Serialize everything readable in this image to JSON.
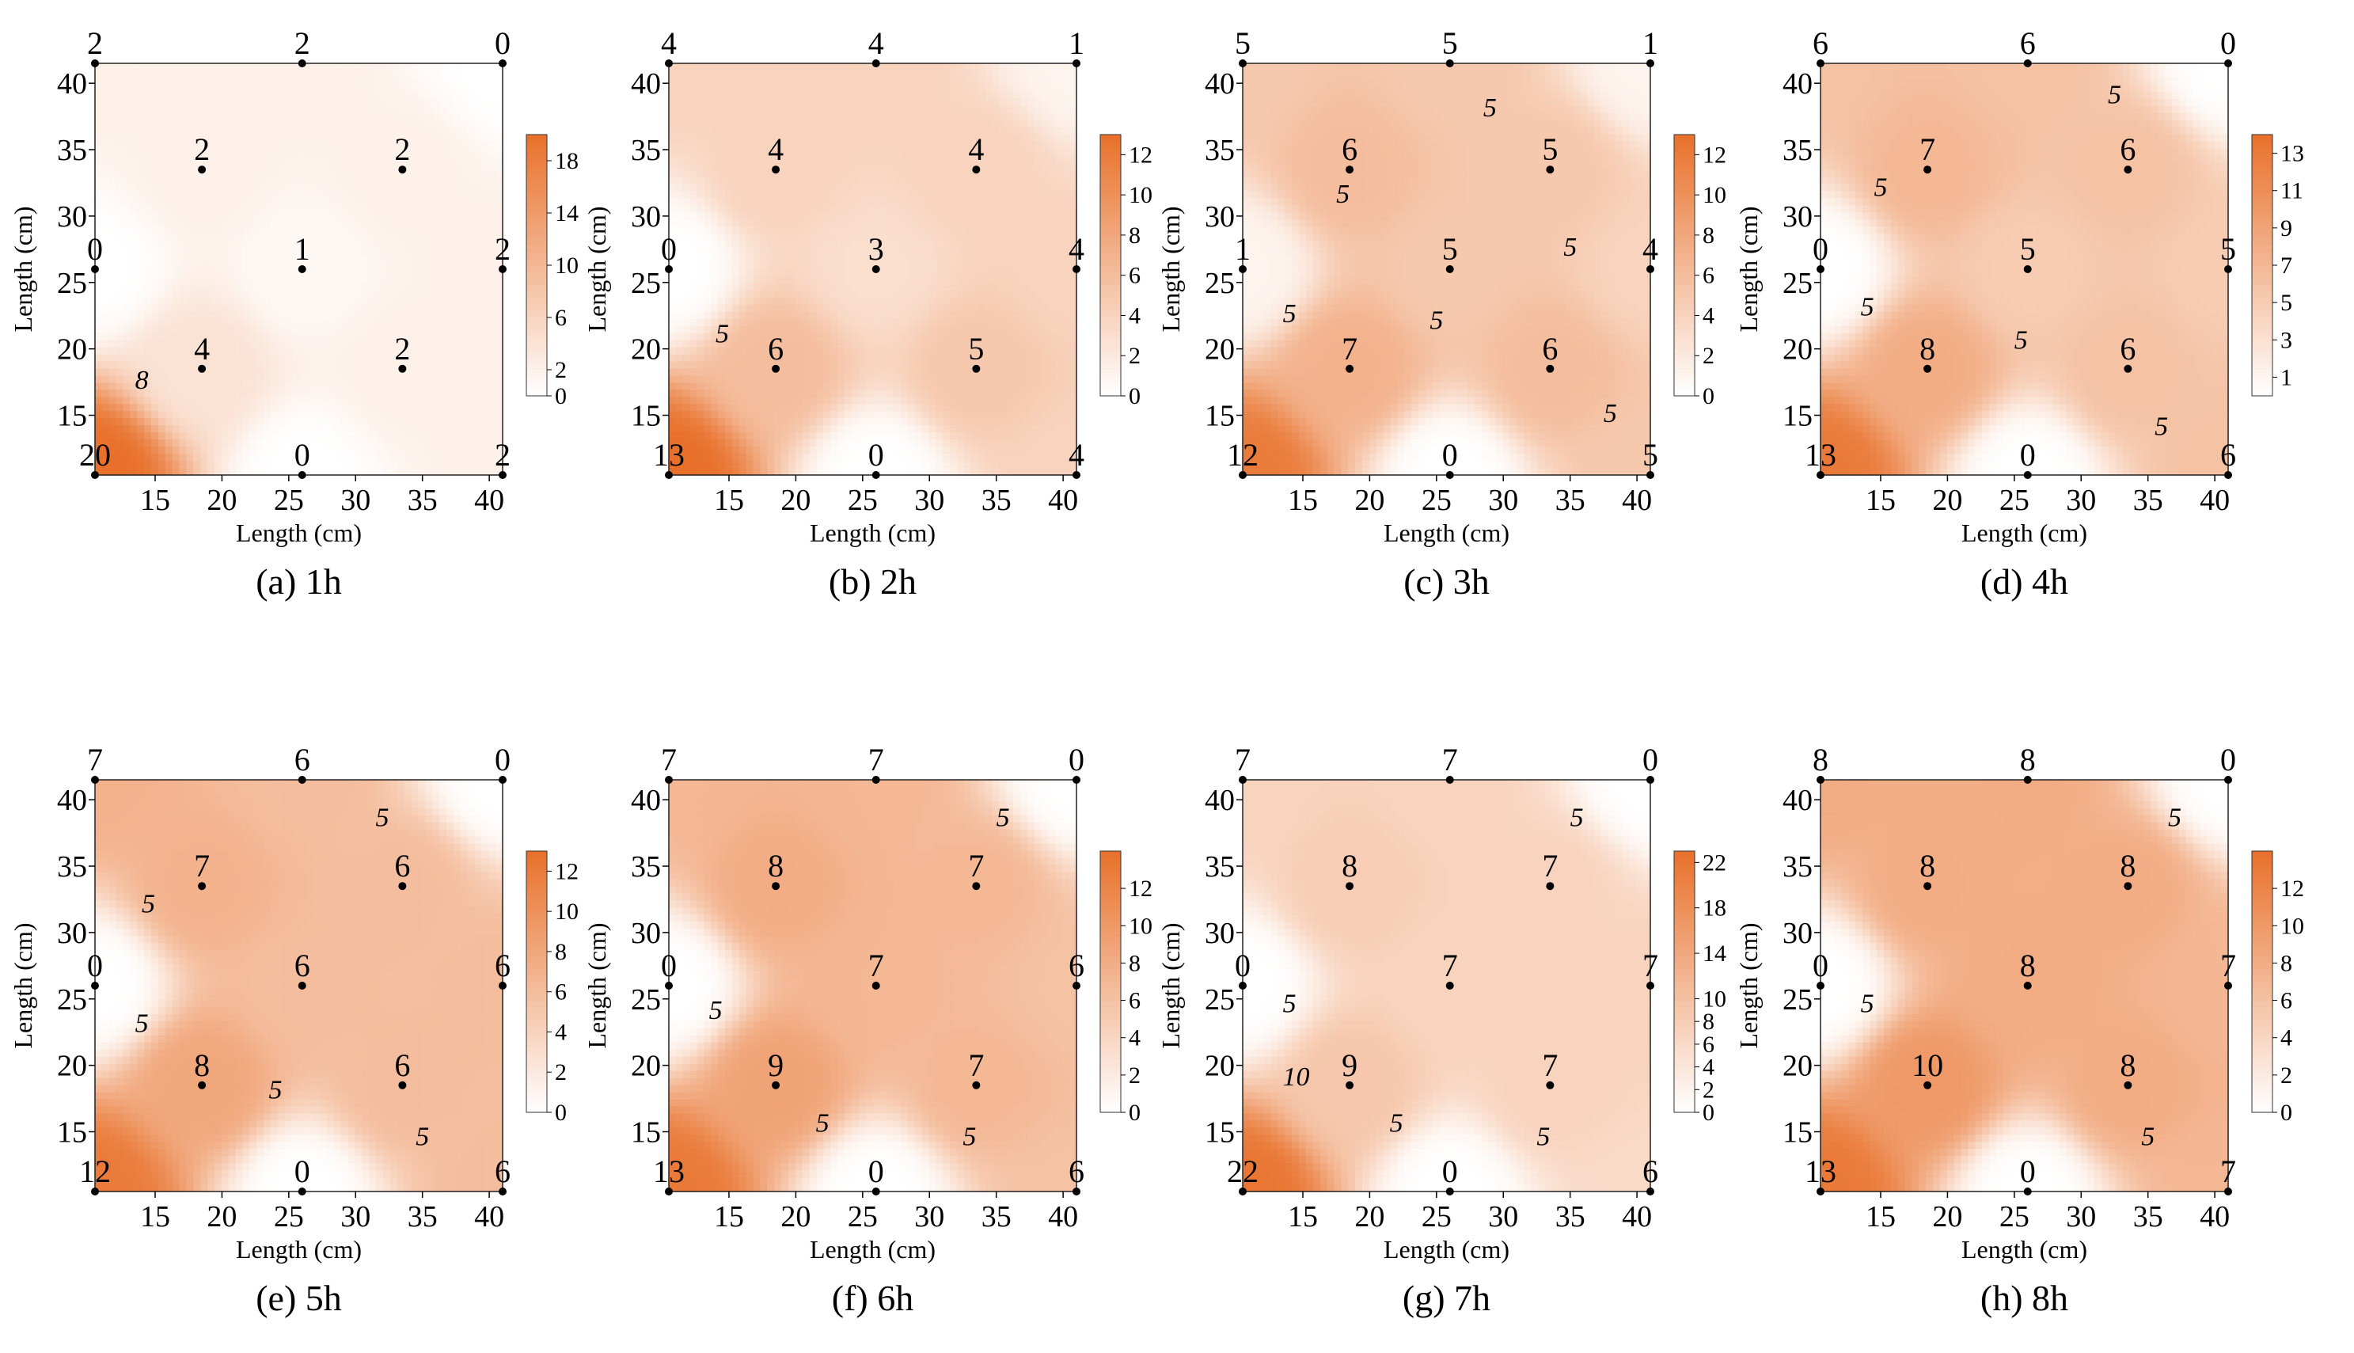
{
  "figure": {
    "x_axis_label": "Length (cm)",
    "y_axis_label": "Length (cm)",
    "colormap": {
      "low": "#ffffff",
      "high": "#e8702a"
    }
  },
  "chart_data": [
    {
      "type": "heatmap",
      "caption": "(a) 1h",
      "x_ticks": [
        15,
        20,
        25,
        30,
        35,
        40
      ],
      "y_ticks": [
        15,
        20,
        25,
        30,
        35,
        40
      ],
      "xlim": [
        10.5,
        41
      ],
      "ylim": [
        10.5,
        41.5
      ],
      "points": [
        {
          "x": 10.5,
          "y": 41.5,
          "v": 2
        },
        {
          "x": 26,
          "y": 41.5,
          "v": 2
        },
        {
          "x": 41,
          "y": 41.5,
          "v": 0
        },
        {
          "x": 18.5,
          "y": 33.5,
          "v": 2
        },
        {
          "x": 33.5,
          "y": 33.5,
          "v": 2
        },
        {
          "x": 10.5,
          "y": 26,
          "v": 0
        },
        {
          "x": 26,
          "y": 26,
          "v": 1
        },
        {
          "x": 41,
          "y": 26,
          "v": 2
        },
        {
          "x": 18.5,
          "y": 18.5,
          "v": 4
        },
        {
          "x": 33.5,
          "y": 18.5,
          "v": 2
        },
        {
          "x": 10.5,
          "y": 10.5,
          "v": 20
        },
        {
          "x": 26,
          "y": 10.5,
          "v": 0
        },
        {
          "x": 41,
          "y": 10.5,
          "v": 2
        }
      ],
      "contour_labels": [
        {
          "x": 14,
          "y": 17,
          "text": "8"
        }
      ],
      "colorbar_ticks": [
        0,
        2,
        6,
        10,
        14,
        18
      ],
      "colorbar_range": [
        0,
        20
      ]
    },
    {
      "type": "heatmap",
      "caption": "(b) 2h",
      "x_ticks": [
        15,
        20,
        25,
        30,
        35,
        40
      ],
      "y_ticks": [
        15,
        20,
        25,
        30,
        35,
        40
      ],
      "xlim": [
        10.5,
        41
      ],
      "ylim": [
        10.5,
        41.5
      ],
      "points": [
        {
          "x": 10.5,
          "y": 41.5,
          "v": 4
        },
        {
          "x": 26,
          "y": 41.5,
          "v": 4
        },
        {
          "x": 41,
          "y": 41.5,
          "v": 1
        },
        {
          "x": 18.5,
          "y": 33.5,
          "v": 4
        },
        {
          "x": 33.5,
          "y": 33.5,
          "v": 4
        },
        {
          "x": 10.5,
          "y": 26,
          "v": 0
        },
        {
          "x": 26,
          "y": 26,
          "v": 3
        },
        {
          "x": 41,
          "y": 26,
          "v": 4
        },
        {
          "x": 18.5,
          "y": 18.5,
          "v": 6
        },
        {
          "x": 33.5,
          "y": 18.5,
          "v": 5
        },
        {
          "x": 10.5,
          "y": 10.5,
          "v": 13
        },
        {
          "x": 26,
          "y": 10.5,
          "v": 0
        },
        {
          "x": 41,
          "y": 10.5,
          "v": 4
        }
      ],
      "contour_labels": [
        {
          "x": 14.5,
          "y": 20.5,
          "text": "5"
        }
      ],
      "colorbar_ticks": [
        0,
        2,
        4,
        6,
        8,
        10,
        12
      ],
      "colorbar_range": [
        0,
        13
      ]
    },
    {
      "type": "heatmap",
      "caption": "(c) 3h",
      "x_ticks": [
        15,
        20,
        25,
        30,
        35,
        40
      ],
      "y_ticks": [
        15,
        20,
        25,
        30,
        35,
        40
      ],
      "xlim": [
        10.5,
        41
      ],
      "ylim": [
        10.5,
        41.5
      ],
      "points": [
        {
          "x": 10.5,
          "y": 41.5,
          "v": 5
        },
        {
          "x": 26,
          "y": 41.5,
          "v": 5
        },
        {
          "x": 41,
          "y": 41.5,
          "v": 1
        },
        {
          "x": 18.5,
          "y": 33.5,
          "v": 6
        },
        {
          "x": 33.5,
          "y": 33.5,
          "v": 5
        },
        {
          "x": 10.5,
          "y": 26,
          "v": 1
        },
        {
          "x": 26,
          "y": 26,
          "v": 5
        },
        {
          "x": 41,
          "y": 26,
          "v": 4
        },
        {
          "x": 18.5,
          "y": 18.5,
          "v": 7
        },
        {
          "x": 33.5,
          "y": 18.5,
          "v": 6
        },
        {
          "x": 10.5,
          "y": 10.5,
          "v": 12
        },
        {
          "x": 26,
          "y": 10.5,
          "v": 0
        },
        {
          "x": 41,
          "y": 10.5,
          "v": 5
        }
      ],
      "contour_labels": [
        {
          "x": 29,
          "y": 37.5,
          "text": "5"
        },
        {
          "x": 18,
          "y": 31,
          "text": "5"
        },
        {
          "x": 14,
          "y": 22,
          "text": "5"
        },
        {
          "x": 25,
          "y": 21.5,
          "text": "5"
        },
        {
          "x": 35,
          "y": 27,
          "text": "5"
        },
        {
          "x": 38,
          "y": 14.5,
          "text": "5"
        }
      ],
      "colorbar_ticks": [
        0,
        2,
        4,
        6,
        8,
        10,
        12
      ],
      "colorbar_range": [
        0,
        13
      ]
    },
    {
      "type": "heatmap",
      "caption": "(d) 4h",
      "x_ticks": [
        15,
        20,
        25,
        30,
        35,
        40
      ],
      "y_ticks": [
        15,
        20,
        25,
        30,
        35,
        40
      ],
      "xlim": [
        10.5,
        41
      ],
      "ylim": [
        10.5,
        41.5
      ],
      "points": [
        {
          "x": 10.5,
          "y": 41.5,
          "v": 6
        },
        {
          "x": 26,
          "y": 41.5,
          "v": 6
        },
        {
          "x": 41,
          "y": 41.5,
          "v": 0
        },
        {
          "x": 18.5,
          "y": 33.5,
          "v": 7
        },
        {
          "x": 33.5,
          "y": 33.5,
          "v": 6
        },
        {
          "x": 10.5,
          "y": 26,
          "v": 0
        },
        {
          "x": 26,
          "y": 26,
          "v": 5
        },
        {
          "x": 41,
          "y": 26,
          "v": 5
        },
        {
          "x": 18.5,
          "y": 18.5,
          "v": 8
        },
        {
          "x": 33.5,
          "y": 18.5,
          "v": 6
        },
        {
          "x": 10.5,
          "y": 10.5,
          "v": 13
        },
        {
          "x": 26,
          "y": 10.5,
          "v": 0
        },
        {
          "x": 41,
          "y": 10.5,
          "v": 6
        }
      ],
      "contour_labels": [
        {
          "x": 32.5,
          "y": 38.5,
          "text": "5"
        },
        {
          "x": 15,
          "y": 31.5,
          "text": "5"
        },
        {
          "x": 14,
          "y": 22.5,
          "text": "5"
        },
        {
          "x": 25.5,
          "y": 20,
          "text": "5"
        },
        {
          "x": 36,
          "y": 13.5,
          "text": "5"
        }
      ],
      "colorbar_ticks": [
        1,
        3,
        5,
        7,
        9,
        11,
        13
      ],
      "colorbar_range": [
        0,
        14
      ]
    },
    {
      "type": "heatmap",
      "caption": "(e) 5h",
      "x_ticks": [
        15,
        20,
        25,
        30,
        35,
        40
      ],
      "y_ticks": [
        15,
        20,
        25,
        30,
        35,
        40
      ],
      "xlim": [
        10.5,
        41
      ],
      "ylim": [
        10.5,
        41.5
      ],
      "points": [
        {
          "x": 10.5,
          "y": 41.5,
          "v": 7
        },
        {
          "x": 26,
          "y": 41.5,
          "v": 6
        },
        {
          "x": 41,
          "y": 41.5,
          "v": 0
        },
        {
          "x": 18.5,
          "y": 33.5,
          "v": 7
        },
        {
          "x": 33.5,
          "y": 33.5,
          "v": 6
        },
        {
          "x": 10.5,
          "y": 26,
          "v": 0
        },
        {
          "x": 26,
          "y": 26,
          "v": 6
        },
        {
          "x": 41,
          "y": 26,
          "v": 6
        },
        {
          "x": 18.5,
          "y": 18.5,
          "v": 8
        },
        {
          "x": 33.5,
          "y": 18.5,
          "v": 6
        },
        {
          "x": 10.5,
          "y": 10.5,
          "v": 12
        },
        {
          "x": 26,
          "y": 10.5,
          "v": 0
        },
        {
          "x": 41,
          "y": 10.5,
          "v": 6
        }
      ],
      "contour_labels": [
        {
          "x": 32,
          "y": 38,
          "text": "5"
        },
        {
          "x": 14.5,
          "y": 31.5,
          "text": "5"
        },
        {
          "x": 14,
          "y": 22.5,
          "text": "5"
        },
        {
          "x": 24,
          "y": 17.5,
          "text": "5"
        },
        {
          "x": 35,
          "y": 14,
          "text": "5"
        }
      ],
      "colorbar_ticks": [
        0,
        2,
        4,
        6,
        8,
        10,
        12
      ],
      "colorbar_range": [
        0,
        13
      ]
    },
    {
      "type": "heatmap",
      "caption": "(f) 6h",
      "x_ticks": [
        15,
        20,
        25,
        30,
        35,
        40
      ],
      "y_ticks": [
        15,
        20,
        25,
        30,
        35,
        40
      ],
      "xlim": [
        10.5,
        41
      ],
      "ylim": [
        10.5,
        41.5
      ],
      "points": [
        {
          "x": 10.5,
          "y": 41.5,
          "v": 7
        },
        {
          "x": 26,
          "y": 41.5,
          "v": 7
        },
        {
          "x": 41,
          "y": 41.5,
          "v": 0
        },
        {
          "x": 18.5,
          "y": 33.5,
          "v": 8
        },
        {
          "x": 33.5,
          "y": 33.5,
          "v": 7
        },
        {
          "x": 10.5,
          "y": 26,
          "v": 0
        },
        {
          "x": 26,
          "y": 26,
          "v": 7
        },
        {
          "x": 41,
          "y": 26,
          "v": 6
        },
        {
          "x": 18.5,
          "y": 18.5,
          "v": 9
        },
        {
          "x": 33.5,
          "y": 18.5,
          "v": 7
        },
        {
          "x": 10.5,
          "y": 10.5,
          "v": 13
        },
        {
          "x": 26,
          "y": 10.5,
          "v": 0
        },
        {
          "x": 41,
          "y": 10.5,
          "v": 6
        }
      ],
      "contour_labels": [
        {
          "x": 35.5,
          "y": 38,
          "text": "5"
        },
        {
          "x": 14,
          "y": 23.5,
          "text": "5"
        },
        {
          "x": 22,
          "y": 15,
          "text": "5"
        },
        {
          "x": 33,
          "y": 14,
          "text": "5"
        }
      ],
      "colorbar_ticks": [
        0,
        2,
        4,
        6,
        8,
        10,
        12
      ],
      "colorbar_range": [
        0,
        14
      ]
    },
    {
      "type": "heatmap",
      "caption": "(g) 7h",
      "x_ticks": [
        15,
        20,
        25,
        30,
        35,
        40
      ],
      "y_ticks": [
        15,
        20,
        25,
        30,
        35,
        40
      ],
      "xlim": [
        10.5,
        41
      ],
      "ylim": [
        10.5,
        41.5
      ],
      "points": [
        {
          "x": 10.5,
          "y": 41.5,
          "v": 7
        },
        {
          "x": 26,
          "y": 41.5,
          "v": 7
        },
        {
          "x": 41,
          "y": 41.5,
          "v": 0
        },
        {
          "x": 18.5,
          "y": 33.5,
          "v": 8
        },
        {
          "x": 33.5,
          "y": 33.5,
          "v": 7
        },
        {
          "x": 10.5,
          "y": 26,
          "v": 0
        },
        {
          "x": 26,
          "y": 26,
          "v": 7
        },
        {
          "x": 41,
          "y": 26,
          "v": 7
        },
        {
          "x": 18.5,
          "y": 18.5,
          "v": 9
        },
        {
          "x": 33.5,
          "y": 18.5,
          "v": 7
        },
        {
          "x": 10.5,
          "y": 10.5,
          "v": 22
        },
        {
          "x": 26,
          "y": 10.5,
          "v": 0
        },
        {
          "x": 41,
          "y": 10.5,
          "v": 6
        }
      ],
      "contour_labels": [
        {
          "x": 35.5,
          "y": 38,
          "text": "5"
        },
        {
          "x": 14,
          "y": 24,
          "text": "5"
        },
        {
          "x": 14.5,
          "y": 18.5,
          "text": "10"
        },
        {
          "x": 22,
          "y": 15,
          "text": "5"
        },
        {
          "x": 33,
          "y": 14,
          "text": "5"
        }
      ],
      "colorbar_ticks": [
        0,
        2,
        4,
        6,
        8,
        10,
        14,
        18,
        22
      ],
      "colorbar_range": [
        0,
        23
      ]
    },
    {
      "type": "heatmap",
      "caption": "(h) 8h",
      "x_ticks": [
        15,
        20,
        25,
        30,
        35,
        40
      ],
      "y_ticks": [
        15,
        20,
        25,
        30,
        35,
        40
      ],
      "xlim": [
        10.5,
        41
      ],
      "ylim": [
        10.5,
        41.5
      ],
      "points": [
        {
          "x": 10.5,
          "y": 41.5,
          "v": 8
        },
        {
          "x": 26,
          "y": 41.5,
          "v": 8
        },
        {
          "x": 41,
          "y": 41.5,
          "v": 0
        },
        {
          "x": 18.5,
          "y": 33.5,
          "v": 8
        },
        {
          "x": 33.5,
          "y": 33.5,
          "v": 8
        },
        {
          "x": 10.5,
          "y": 26,
          "v": 0
        },
        {
          "x": 26,
          "y": 26,
          "v": 8
        },
        {
          "x": 41,
          "y": 26,
          "v": 7
        },
        {
          "x": 18.5,
          "y": 18.5,
          "v": 10
        },
        {
          "x": 33.5,
          "y": 18.5,
          "v": 8
        },
        {
          "x": 10.5,
          "y": 10.5,
          "v": 13
        },
        {
          "x": 26,
          "y": 10.5,
          "v": 0
        },
        {
          "x": 41,
          "y": 10.5,
          "v": 7
        }
      ],
      "contour_labels": [
        {
          "x": 37,
          "y": 38,
          "text": "5"
        },
        {
          "x": 14,
          "y": 24,
          "text": "5"
        },
        {
          "x": 35,
          "y": 14,
          "text": "5"
        }
      ],
      "colorbar_ticks": [
        0,
        2,
        4,
        6,
        8,
        10,
        12
      ],
      "colorbar_range": [
        0,
        14
      ]
    }
  ]
}
